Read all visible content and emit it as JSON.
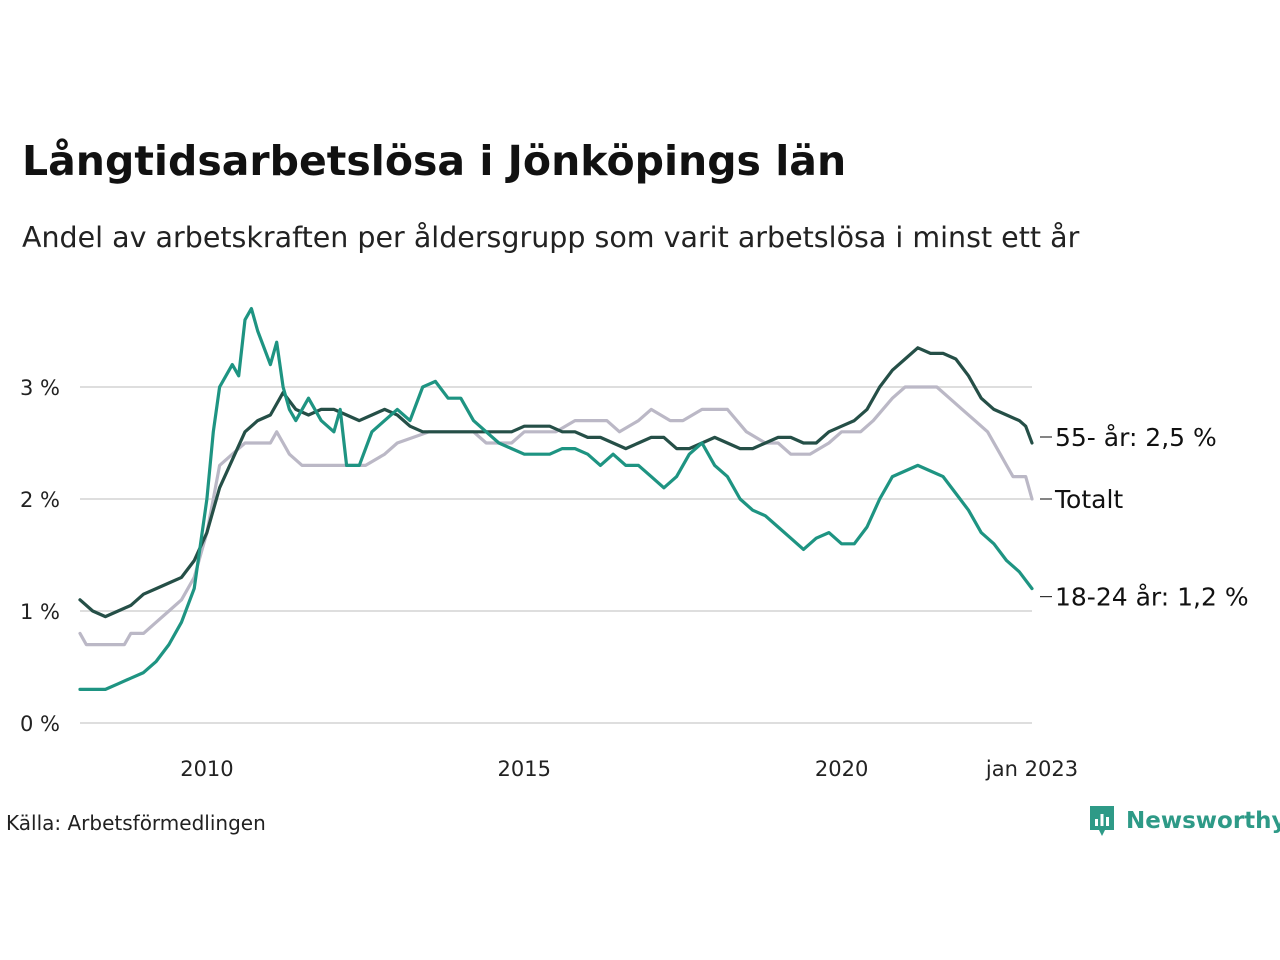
{
  "header": {
    "title": "Långtidsarbetslösa i Jönköpings län",
    "subtitle": "Andel av arbetskraften per åldersgrupp som varit arbetslösa i minst ett år"
  },
  "footer": {
    "source": "Källa: Arbetsförmedlingen",
    "brand": "Newsworthy"
  },
  "chart_data": {
    "type": "line",
    "x_tick_labels": [
      "2010",
      "2015",
      "2020",
      "jan 2023"
    ],
    "x_ticks": [
      2010,
      2015,
      2020,
      2023
    ],
    "xlim": [
      2008.0,
      2023.0
    ],
    "ylim": [
      0,
      3.8
    ],
    "y_ticks": [
      0,
      1,
      2,
      3
    ],
    "y_tick_labels": [
      "0 %",
      "1 %",
      "2 %",
      "3 %"
    ],
    "grid": "horizontal",
    "legend": "direct labels at line ends (right)",
    "colors": {
      "age55": "#254f47",
      "total": "#bbb8c6",
      "age18_24": "#1e9482",
      "grid": "#dedede"
    },
    "series": [
      {
        "key": "total",
        "name": "Totalt",
        "end_label": "Totalt",
        "values": [
          [
            2008.0,
            0.8
          ],
          [
            2008.1,
            0.7
          ],
          [
            2008.5,
            0.7
          ],
          [
            2008.7,
            0.7
          ],
          [
            2008.8,
            0.8
          ],
          [
            2009.0,
            0.8
          ],
          [
            2009.2,
            0.9
          ],
          [
            2009.4,
            1.0
          ],
          [
            2009.6,
            1.1
          ],
          [
            2009.8,
            1.3
          ],
          [
            2010.0,
            1.7
          ],
          [
            2010.1,
            2.0
          ],
          [
            2010.2,
            2.3
          ],
          [
            2010.4,
            2.4
          ],
          [
            2010.6,
            2.5
          ],
          [
            2010.8,
            2.5
          ],
          [
            2011.0,
            2.5
          ],
          [
            2011.1,
            2.6
          ],
          [
            2011.2,
            2.5
          ],
          [
            2011.3,
            2.4
          ],
          [
            2011.5,
            2.3
          ],
          [
            2011.8,
            2.3
          ],
          [
            2012.0,
            2.3
          ],
          [
            2012.5,
            2.3
          ],
          [
            2012.8,
            2.4
          ],
          [
            2013.0,
            2.5
          ],
          [
            2013.5,
            2.6
          ],
          [
            2014.0,
            2.6
          ],
          [
            2014.2,
            2.6
          ],
          [
            2014.4,
            2.5
          ],
          [
            2014.8,
            2.5
          ],
          [
            2015.0,
            2.6
          ],
          [
            2015.3,
            2.6
          ],
          [
            2015.5,
            2.6
          ],
          [
            2015.8,
            2.7
          ],
          [
            2016.0,
            2.7
          ],
          [
            2016.3,
            2.7
          ],
          [
            2016.5,
            2.6
          ],
          [
            2016.8,
            2.7
          ],
          [
            2017.0,
            2.8
          ],
          [
            2017.3,
            2.7
          ],
          [
            2017.5,
            2.7
          ],
          [
            2017.8,
            2.8
          ],
          [
            2018.0,
            2.8
          ],
          [
            2018.2,
            2.8
          ],
          [
            2018.5,
            2.6
          ],
          [
            2018.8,
            2.5
          ],
          [
            2019.0,
            2.5
          ],
          [
            2019.2,
            2.4
          ],
          [
            2019.5,
            2.4
          ],
          [
            2019.8,
            2.5
          ],
          [
            2020.0,
            2.6
          ],
          [
            2020.3,
            2.6
          ],
          [
            2020.5,
            2.7
          ],
          [
            2020.8,
            2.9
          ],
          [
            2021.0,
            3.0
          ],
          [
            2021.3,
            3.0
          ],
          [
            2021.5,
            3.0
          ],
          [
            2021.7,
            2.9
          ],
          [
            2021.9,
            2.8
          ],
          [
            2022.1,
            2.7
          ],
          [
            2022.3,
            2.6
          ],
          [
            2022.5,
            2.4
          ],
          [
            2022.6,
            2.3
          ],
          [
            2022.7,
            2.2
          ],
          [
            2022.9,
            2.2
          ],
          [
            2023.0,
            2.0
          ]
        ]
      },
      {
        "key": "age55",
        "name": "55- år",
        "end_label": "55- år: 2,5 %",
        "values": [
          [
            2008.0,
            1.1
          ],
          [
            2008.2,
            1.0
          ],
          [
            2008.4,
            0.95
          ],
          [
            2008.6,
            1.0
          ],
          [
            2008.8,
            1.05
          ],
          [
            2009.0,
            1.15
          ],
          [
            2009.2,
            1.2
          ],
          [
            2009.4,
            1.25
          ],
          [
            2009.6,
            1.3
          ],
          [
            2009.8,
            1.45
          ],
          [
            2010.0,
            1.7
          ],
          [
            2010.2,
            2.1
          ],
          [
            2010.4,
            2.35
          ],
          [
            2010.6,
            2.6
          ],
          [
            2010.8,
            2.7
          ],
          [
            2011.0,
            2.75
          ],
          [
            2011.2,
            2.95
          ],
          [
            2011.4,
            2.8
          ],
          [
            2011.6,
            2.75
          ],
          [
            2011.8,
            2.8
          ],
          [
            2012.0,
            2.8
          ],
          [
            2012.2,
            2.75
          ],
          [
            2012.4,
            2.7
          ],
          [
            2012.6,
            2.75
          ],
          [
            2012.8,
            2.8
          ],
          [
            2013.0,
            2.75
          ],
          [
            2013.2,
            2.65
          ],
          [
            2013.4,
            2.6
          ],
          [
            2013.6,
            2.6
          ],
          [
            2013.8,
            2.6
          ],
          [
            2014.0,
            2.6
          ],
          [
            2014.2,
            2.6
          ],
          [
            2014.4,
            2.6
          ],
          [
            2014.6,
            2.6
          ],
          [
            2014.8,
            2.6
          ],
          [
            2015.0,
            2.65
          ],
          [
            2015.2,
            2.65
          ],
          [
            2015.4,
            2.65
          ],
          [
            2015.6,
            2.6
          ],
          [
            2015.8,
            2.6
          ],
          [
            2016.0,
            2.55
          ],
          [
            2016.2,
            2.55
          ],
          [
            2016.4,
            2.5
          ],
          [
            2016.6,
            2.45
          ],
          [
            2016.8,
            2.5
          ],
          [
            2017.0,
            2.55
          ],
          [
            2017.2,
            2.55
          ],
          [
            2017.4,
            2.45
          ],
          [
            2017.6,
            2.45
          ],
          [
            2017.8,
            2.5
          ],
          [
            2018.0,
            2.55
          ],
          [
            2018.2,
            2.5
          ],
          [
            2018.4,
            2.45
          ],
          [
            2018.6,
            2.45
          ],
          [
            2018.8,
            2.5
          ],
          [
            2019.0,
            2.55
          ],
          [
            2019.2,
            2.55
          ],
          [
            2019.4,
            2.5
          ],
          [
            2019.6,
            2.5
          ],
          [
            2019.8,
            2.6
          ],
          [
            2020.0,
            2.65
          ],
          [
            2020.2,
            2.7
          ],
          [
            2020.4,
            2.8
          ],
          [
            2020.6,
            3.0
          ],
          [
            2020.8,
            3.15
          ],
          [
            2021.0,
            3.25
          ],
          [
            2021.2,
            3.35
          ],
          [
            2021.4,
            3.3
          ],
          [
            2021.6,
            3.3
          ],
          [
            2021.8,
            3.25
          ],
          [
            2022.0,
            3.1
          ],
          [
            2022.2,
            2.9
          ],
          [
            2022.4,
            2.8
          ],
          [
            2022.6,
            2.75
          ],
          [
            2022.8,
            2.7
          ],
          [
            2022.9,
            2.65
          ],
          [
            2023.0,
            2.5
          ]
        ]
      },
      {
        "key": "age18_24",
        "name": "18-24 år",
        "end_label": "18-24 år: 1,2 %",
        "values": [
          [
            2008.0,
            0.3
          ],
          [
            2008.2,
            0.3
          ],
          [
            2008.4,
            0.3
          ],
          [
            2008.6,
            0.35
          ],
          [
            2008.8,
            0.4
          ],
          [
            2009.0,
            0.45
          ],
          [
            2009.2,
            0.55
          ],
          [
            2009.4,
            0.7
          ],
          [
            2009.6,
            0.9
          ],
          [
            2009.8,
            1.2
          ],
          [
            2010.0,
            2.0
          ],
          [
            2010.1,
            2.6
          ],
          [
            2010.2,
            3.0
          ],
          [
            2010.4,
            3.2
          ],
          [
            2010.5,
            3.1
          ],
          [
            2010.6,
            3.6
          ],
          [
            2010.7,
            3.7
          ],
          [
            2010.8,
            3.5
          ],
          [
            2011.0,
            3.2
          ],
          [
            2011.1,
            3.4
          ],
          [
            2011.2,
            3.0
          ],
          [
            2011.3,
            2.8
          ],
          [
            2011.4,
            2.7
          ],
          [
            2011.6,
            2.9
          ],
          [
            2011.8,
            2.7
          ],
          [
            2012.0,
            2.6
          ],
          [
            2012.1,
            2.8
          ],
          [
            2012.2,
            2.3
          ],
          [
            2012.4,
            2.3
          ],
          [
            2012.6,
            2.6
          ],
          [
            2012.8,
            2.7
          ],
          [
            2013.0,
            2.8
          ],
          [
            2013.2,
            2.7
          ],
          [
            2013.4,
            3.0
          ],
          [
            2013.6,
            3.05
          ],
          [
            2013.8,
            2.9
          ],
          [
            2014.0,
            2.9
          ],
          [
            2014.2,
            2.7
          ],
          [
            2014.4,
            2.6
          ],
          [
            2014.6,
            2.5
          ],
          [
            2014.8,
            2.45
          ],
          [
            2015.0,
            2.4
          ],
          [
            2015.2,
            2.4
          ],
          [
            2015.4,
            2.4
          ],
          [
            2015.6,
            2.45
          ],
          [
            2015.8,
            2.45
          ],
          [
            2016.0,
            2.4
          ],
          [
            2016.2,
            2.3
          ],
          [
            2016.4,
            2.4
          ],
          [
            2016.6,
            2.3
          ],
          [
            2016.8,
            2.3
          ],
          [
            2017.0,
            2.2
          ],
          [
            2017.2,
            2.1
          ],
          [
            2017.4,
            2.2
          ],
          [
            2017.6,
            2.4
          ],
          [
            2017.8,
            2.5
          ],
          [
            2018.0,
            2.3
          ],
          [
            2018.2,
            2.2
          ],
          [
            2018.4,
            2.0
          ],
          [
            2018.6,
            1.9
          ],
          [
            2018.8,
            1.85
          ],
          [
            2019.0,
            1.75
          ],
          [
            2019.2,
            1.65
          ],
          [
            2019.4,
            1.55
          ],
          [
            2019.6,
            1.65
          ],
          [
            2019.8,
            1.7
          ],
          [
            2020.0,
            1.6
          ],
          [
            2020.2,
            1.6
          ],
          [
            2020.4,
            1.75
          ],
          [
            2020.6,
            2.0
          ],
          [
            2020.8,
            2.2
          ],
          [
            2021.0,
            2.25
          ],
          [
            2021.2,
            2.3
          ],
          [
            2021.4,
            2.25
          ],
          [
            2021.6,
            2.2
          ],
          [
            2021.8,
            2.05
          ],
          [
            2022.0,
            1.9
          ],
          [
            2022.2,
            1.7
          ],
          [
            2022.4,
            1.6
          ],
          [
            2022.6,
            1.45
          ],
          [
            2022.8,
            1.35
          ],
          [
            2023.0,
            1.2
          ]
        ]
      }
    ]
  }
}
